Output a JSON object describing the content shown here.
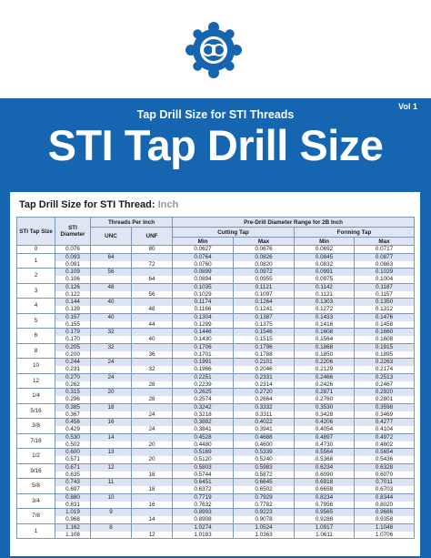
{
  "header": {
    "vol": "Vol 1",
    "subtitle": "Tap Drill Size for STI Threads",
    "title": "STI Tap Drill Size",
    "logo_icon": "osg-logo-icon"
  },
  "table": {
    "title": "Tap Drill Size for STI Thread:",
    "unit": "Inch",
    "headers": {
      "tap_size": "STI Tap Size",
      "diameter": "STI Diameter",
      "tpi": "Threads Per Inch",
      "unc": "UNC",
      "unf": "UNF",
      "range": "Pre-Drill Diameter Range for 2B Inch",
      "cutting": "Cutting Tap",
      "forming": "Forming Tap",
      "min": "Min",
      "max": "Max"
    },
    "groups": [
      {
        "size": "0",
        "rows": [
          [
            "0.076",
            "",
            "80",
            "0.0627",
            "0.0676",
            "0.0692",
            "0.0717"
          ]
        ]
      },
      {
        "size": "1",
        "rows": [
          [
            "0.093",
            "64",
            "",
            "0.0764",
            "0.0826",
            "0.0845",
            "0.0877"
          ],
          [
            "0.091",
            "",
            "72",
            "0.0760",
            "0.0820",
            "0.0832",
            "0.0863"
          ]
        ]
      },
      {
        "size": "2",
        "rows": [
          [
            "0.109",
            "56",
            "",
            "0.0899",
            "0.0972",
            "0.0991",
            "0.1029"
          ],
          [
            "0.106",
            "",
            "64",
            "0.0894",
            "0.0955",
            "0.0975",
            "0.1004"
          ]
        ]
      },
      {
        "size": "3",
        "rows": [
          [
            "0.126",
            "48",
            "",
            "0.1035",
            "0.1121",
            "0.1142",
            "0.1187"
          ],
          [
            "0.122",
            "",
            "56",
            "0.1029",
            "0.1097",
            "0.1121",
            "0.1157"
          ]
        ]
      },
      {
        "size": "4",
        "rows": [
          [
            "0.144",
            "40",
            "",
            "0.1174",
            "0.1264",
            "0.1303",
            "0.1350"
          ],
          [
            "0.139",
            "",
            "48",
            "0.1166",
            "0.1241",
            "0.1272",
            "0.1312"
          ]
        ]
      },
      {
        "size": "5",
        "rows": [
          [
            "0.157",
            "40",
            "",
            "0.1304",
            "0.1387",
            "0.1433",
            "0.1476"
          ],
          [
            "0.155",
            "",
            "44",
            "0.1299",
            "0.1375",
            "0.1416",
            "0.1458"
          ]
        ]
      },
      {
        "size": "6",
        "rows": [
          [
            "0.179",
            "32",
            "",
            "0.1446",
            "0.1546",
            "0.1608",
            "0.1660"
          ],
          [
            "0.170",
            "",
            "40",
            "0.1430",
            "0.1515",
            "0.1564",
            "0.1608"
          ]
        ]
      },
      {
        "size": "8",
        "rows": [
          [
            "0.205",
            "32",
            "",
            "0.1706",
            "0.1796",
            "0.1868",
            "0.1915"
          ],
          [
            "0.200",
            "",
            "36",
            "0.1701",
            "0.1788",
            "0.1850",
            "0.1895"
          ]
        ]
      },
      {
        "size": "10",
        "rows": [
          [
            "0.244",
            "24",
            "",
            "0.1991",
            "0.2101",
            "0.2206",
            "0.2263"
          ],
          [
            "0.231",
            "",
            "32",
            "0.1966",
            "0.2046",
            "0.2129",
            "0.2174"
          ]
        ]
      },
      {
        "size": "12",
        "rows": [
          [
            "0.270",
            "24",
            "",
            "0.2251",
            "0.2331",
            "0.2466",
            "0.2513"
          ],
          [
            "0.262",
            "",
            "28",
            "0.2239",
            "0.2314",
            "0.2426",
            "0.2467"
          ]
        ]
      },
      {
        "size": "1/4",
        "rows": [
          [
            "0.315",
            "20",
            "",
            "0.2625",
            "0.2720",
            "0.2871",
            "0.2920"
          ],
          [
            "0.296",
            "",
            "28",
            "0.2574",
            "0.2664",
            "0.2760",
            "0.2801"
          ]
        ]
      },
      {
        "size": "5/16",
        "rows": [
          [
            "0.385",
            "18",
            "",
            "0.3242",
            "0.3332",
            "0.3530",
            "0.3598"
          ],
          [
            "0.367",
            "",
            "24",
            "0.3218",
            "0.3311",
            "0.3428",
            "0.3469"
          ]
        ]
      },
      {
        "size": "3/8",
        "rows": [
          [
            "0.456",
            "16",
            "",
            "0.3882",
            "0.4022",
            "0.4206",
            "0.4277"
          ],
          [
            "0.429",
            "",
            "24",
            "0.3841",
            "0.3941",
            "0.4054",
            "0.4104"
          ]
        ]
      },
      {
        "size": "7/16",
        "rows": [
          [
            "0.530",
            "14",
            "",
            "0.4528",
            "0.4688",
            "0.4897",
            "0.4972"
          ],
          [
            "0.502",
            "",
            "20",
            "0.4480",
            "0.4600",
            "0.4730",
            "0.4802"
          ]
        ]
      },
      {
        "size": "1/2",
        "rows": [
          [
            "0.600",
            "13",
            "",
            "0.5169",
            "0.5339",
            "0.5564",
            "0.5654"
          ],
          [
            "0.571",
            "",
            "20",
            "0.5120",
            "0.5240",
            "0.5368",
            "0.5436"
          ]
        ]
      },
      {
        "size": "9/16",
        "rows": [
          [
            "0.671",
            "12",
            "",
            "0.5803",
            "0.5983",
            "0.6234",
            "0.6328"
          ],
          [
            "0.635",
            "",
            "18",
            "0.5744",
            "0.5872",
            "0.6090",
            "0.6070"
          ]
        ]
      },
      {
        "size": "5/8",
        "rows": [
          [
            "0.743",
            "11",
            "",
            "0.6451",
            "0.6645",
            "0.6918",
            "0.7011"
          ],
          [
            "0.697",
            "",
            "18",
            "0.6372",
            "0.6502",
            "0.6658",
            "0.6703"
          ]
        ]
      },
      {
        "size": "3/4",
        "rows": [
          [
            "0.880",
            "10",
            "",
            "0.7719",
            "0.7929",
            "0.8234",
            "0.8344"
          ],
          [
            "0.831",
            "",
            "16",
            "0.7632",
            "0.7782",
            "0.7956",
            "0.8020"
          ]
        ]
      },
      {
        "size": "7/8",
        "rows": [
          [
            "1.019",
            "9",
            "",
            "0.8993",
            "0.9223",
            "0.9565",
            "0.9686"
          ],
          [
            "0.968",
            "",
            "14",
            "0.8908",
            "0.9078",
            "0.9288",
            "0.9358"
          ]
        ]
      },
      {
        "size": "1",
        "rows": [
          [
            "1.162",
            "8",
            "",
            "1.0274",
            "1.0524",
            "1.0917",
            "1.1048"
          ],
          [
            "1.108",
            "",
            "12",
            "1.0183",
            "1.0363",
            "1.0611",
            "1.0706"
          ]
        ]
      }
    ]
  },
  "colors": {
    "banner": "#1565b0",
    "row_alt": "#dde4f1",
    "header_bg": "#dfe6f3"
  }
}
